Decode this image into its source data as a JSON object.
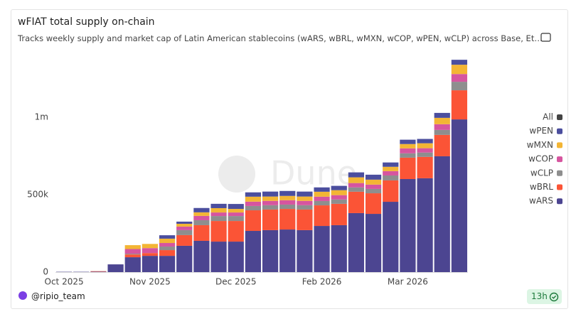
{
  "chart_data": {
    "type": "stacked_bar",
    "title": "wFIAT total supply on-chain",
    "subtitle": "Tracks weekly supply and market cap of Latin American stablecoins (wARS, wBRL, wMXN, wCOP, wPEN, wCLP) across Base, Ethereum, a",
    "categories": [
      "Oct 2025",
      null,
      null,
      null,
      null,
      "Nov 2025",
      null,
      null,
      null,
      null,
      "Dec 2025",
      null,
      null,
      null,
      null,
      "Feb 2026",
      null,
      null,
      null,
      null,
      "Mar 2026",
      null,
      null,
      null
    ],
    "series": [
      {
        "name": "wARS",
        "color": "#4c4591",
        "values": [
          2000,
          2000,
          3000,
          50000,
          96000,
          105000,
          105000,
          170000,
          202000,
          197000,
          197000,
          266000,
          271000,
          275000,
          271000,
          298000,
          303000,
          381000,
          376000,
          454000,
          601000,
          606000,
          748000,
          986000
        ]
      },
      {
        "name": "wBRL",
        "color": "#fb5436",
        "values": [
          0,
          0,
          3000,
          0,
          18000,
          18000,
          37000,
          69000,
          101000,
          133000,
          133000,
          133000,
          133000,
          133000,
          133000,
          133000,
          138000,
          138000,
          133000,
          138000,
          138000,
          138000,
          138000,
          188000
        ]
      },
      {
        "name": "wCLP",
        "color": "#8e8e8e",
        "values": [
          0,
          0,
          0,
          0,
          5000,
          0,
          23000,
          32000,
          32000,
          32000,
          32000,
          28000,
          28000,
          28000,
          28000,
          28000,
          28000,
          28000,
          28000,
          32000,
          28000,
          28000,
          32000,
          55000
        ]
      },
      {
        "name": "wCOP",
        "color": "#d6559f",
        "values": [
          0,
          0,
          0,
          0,
          30000,
          32000,
          23000,
          23000,
          28000,
          23000,
          23000,
          28000,
          28000,
          28000,
          28000,
          28000,
          28000,
          28000,
          28000,
          28000,
          32000,
          28000,
          37000,
          50000
        ]
      },
      {
        "name": "wMXN",
        "color": "#f3b534",
        "values": [
          0,
          0,
          0,
          0,
          25000,
          27000,
          28000,
          18000,
          23000,
          28000,
          23000,
          32000,
          28000,
          28000,
          28000,
          32000,
          32000,
          37000,
          32000,
          28000,
          28000,
          32000,
          41000,
          60000
        ]
      },
      {
        "name": "wPEN",
        "color": "#4b4e9e",
        "values": [
          0,
          0,
          0,
          0,
          0,
          0,
          22000,
          14000,
          28000,
          28000,
          32000,
          28000,
          32000,
          32000,
          32000,
          28000,
          28000,
          32000,
          32000,
          28000,
          28000,
          28000,
          32000,
          32000
        ]
      }
    ],
    "ylim": [
      0,
      1390000
    ],
    "yticks": [
      0,
      {
        "value": 500000,
        "label": "500k"
      },
      {
        "value": 1000000,
        "label": "1m"
      }
    ],
    "grid": false,
    "legend": "right",
    "legend_all_label": "All",
    "legend_all_color": "#444444",
    "watermark": "Dune",
    "author": "@ripio_team",
    "age": "13h"
  }
}
